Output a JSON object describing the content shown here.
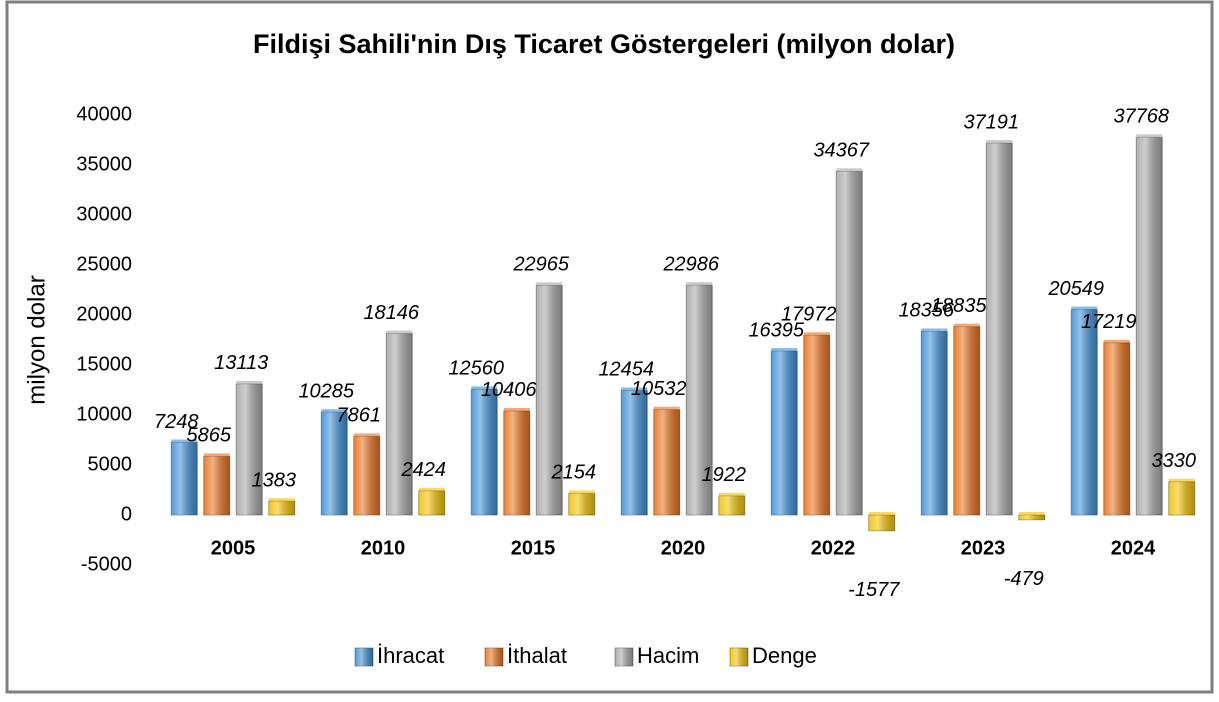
{
  "chart_data": {
    "type": "bar",
    "title": "Fildişi Sahili'nin Dış Ticaret Göstergeleri (milyon dolar)",
    "y_label": "milyon dolar",
    "categories": [
      "2005",
      "2010",
      "2015",
      "2020",
      "2022",
      "2023",
      "2024"
    ],
    "series": [
      {
        "name": "İhracat",
        "color": "#3d8fd6",
        "values": [
          7248,
          10285,
          12560,
          12454,
          16395,
          18356,
          20549
        ]
      },
      {
        "name": "İthalat",
        "color": "#e8711c",
        "values": [
          5865,
          7861,
          10406,
          10532,
          17972,
          18835,
          17219
        ]
      },
      {
        "name": "Hacim",
        "color": "#a6a6a6",
        "values": [
          13113,
          18146,
          22965,
          22986,
          34367,
          37191,
          37768
        ]
      },
      {
        "name": "Denge",
        "color": "#f2c100",
        "values": [
          1383,
          2424,
          2154,
          1922,
          -1577,
          -479,
          3330
        ]
      }
    ],
    "ylim": [
      -5000,
      40000
    ],
    "yticks": [
      -5000,
      0,
      5000,
      10000,
      15000,
      20000,
      25000,
      30000,
      35000,
      40000
    ],
    "grid": false,
    "legend": "bottom"
  }
}
